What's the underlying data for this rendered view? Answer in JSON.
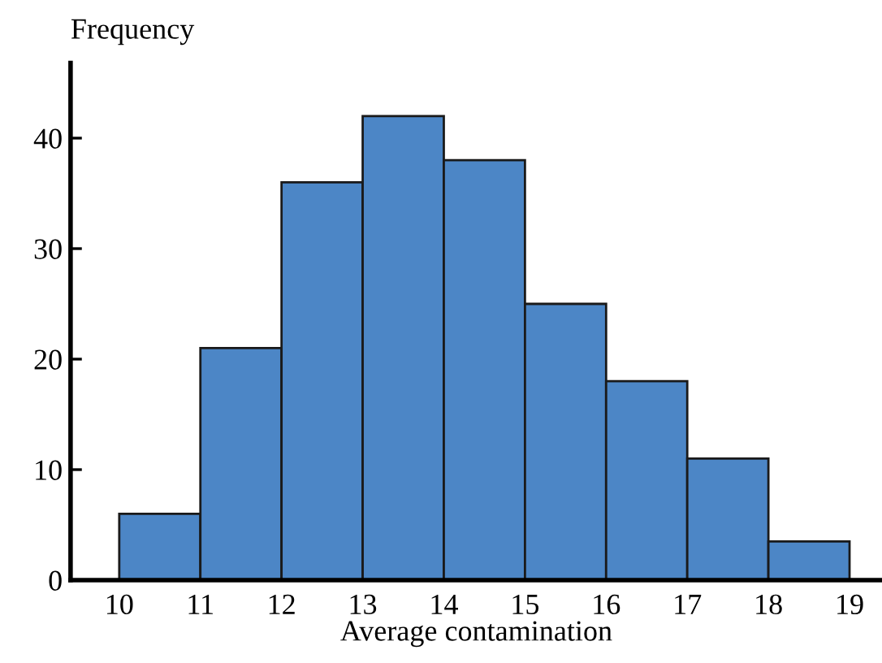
{
  "chart_data": {
    "type": "histogram",
    "xlabel": "Average contamination",
    "ylabel": "Frequency",
    "bins": [
      10,
      11,
      12,
      13,
      14,
      15,
      16,
      17,
      18,
      19
    ],
    "values": [
      6,
      21,
      36,
      42,
      38,
      25,
      18,
      11,
      3.5
    ],
    "color": "#4c86c6",
    "xlim": [
      9.4,
      19.4
    ],
    "ylim": [
      0,
      46.8
    ],
    "xticks": [
      10,
      11,
      12,
      13,
      14,
      15,
      16,
      17,
      18,
      19
    ],
    "yticks": [
      0,
      10,
      20,
      30,
      40
    ],
    "grid": false
  }
}
